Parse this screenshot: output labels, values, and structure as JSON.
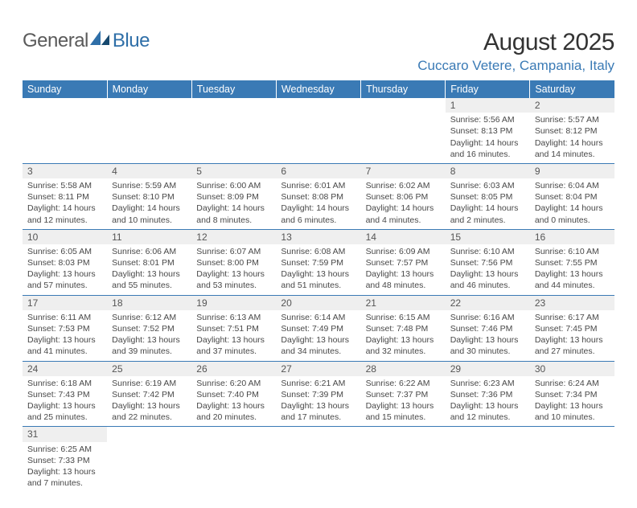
{
  "logo": {
    "text1": "General",
    "text2": "Blue"
  },
  "title": "August 2025",
  "location": "Cuccaro Vetere, Campania, Italy",
  "colors": {
    "header_bg": "#3a7ab5",
    "header_text": "#ffffff",
    "text": "#484848",
    "daynum_bg": "#efefef",
    "border": "#3a7ab5",
    "logo_gray": "#5a5a5a",
    "logo_blue": "#2f6fa8"
  },
  "days_of_week": [
    "Sunday",
    "Monday",
    "Tuesday",
    "Wednesday",
    "Thursday",
    "Friday",
    "Saturday"
  ],
  "weeks": [
    [
      {
        "n": "",
        "sr": "",
        "ss": "",
        "dl": ""
      },
      {
        "n": "",
        "sr": "",
        "ss": "",
        "dl": ""
      },
      {
        "n": "",
        "sr": "",
        "ss": "",
        "dl": ""
      },
      {
        "n": "",
        "sr": "",
        "ss": "",
        "dl": ""
      },
      {
        "n": "",
        "sr": "",
        "ss": "",
        "dl": ""
      },
      {
        "n": "1",
        "sr": "Sunrise: 5:56 AM",
        "ss": "Sunset: 8:13 PM",
        "dl": "Daylight: 14 hours and 16 minutes."
      },
      {
        "n": "2",
        "sr": "Sunrise: 5:57 AM",
        "ss": "Sunset: 8:12 PM",
        "dl": "Daylight: 14 hours and 14 minutes."
      }
    ],
    [
      {
        "n": "3",
        "sr": "Sunrise: 5:58 AM",
        "ss": "Sunset: 8:11 PM",
        "dl": "Daylight: 14 hours and 12 minutes."
      },
      {
        "n": "4",
        "sr": "Sunrise: 5:59 AM",
        "ss": "Sunset: 8:10 PM",
        "dl": "Daylight: 14 hours and 10 minutes."
      },
      {
        "n": "5",
        "sr": "Sunrise: 6:00 AM",
        "ss": "Sunset: 8:09 PM",
        "dl": "Daylight: 14 hours and 8 minutes."
      },
      {
        "n": "6",
        "sr": "Sunrise: 6:01 AM",
        "ss": "Sunset: 8:08 PM",
        "dl": "Daylight: 14 hours and 6 minutes."
      },
      {
        "n": "7",
        "sr": "Sunrise: 6:02 AM",
        "ss": "Sunset: 8:06 PM",
        "dl": "Daylight: 14 hours and 4 minutes."
      },
      {
        "n": "8",
        "sr": "Sunrise: 6:03 AM",
        "ss": "Sunset: 8:05 PM",
        "dl": "Daylight: 14 hours and 2 minutes."
      },
      {
        "n": "9",
        "sr": "Sunrise: 6:04 AM",
        "ss": "Sunset: 8:04 PM",
        "dl": "Daylight: 14 hours and 0 minutes."
      }
    ],
    [
      {
        "n": "10",
        "sr": "Sunrise: 6:05 AM",
        "ss": "Sunset: 8:03 PM",
        "dl": "Daylight: 13 hours and 57 minutes."
      },
      {
        "n": "11",
        "sr": "Sunrise: 6:06 AM",
        "ss": "Sunset: 8:01 PM",
        "dl": "Daylight: 13 hours and 55 minutes."
      },
      {
        "n": "12",
        "sr": "Sunrise: 6:07 AM",
        "ss": "Sunset: 8:00 PM",
        "dl": "Daylight: 13 hours and 53 minutes."
      },
      {
        "n": "13",
        "sr": "Sunrise: 6:08 AM",
        "ss": "Sunset: 7:59 PM",
        "dl": "Daylight: 13 hours and 51 minutes."
      },
      {
        "n": "14",
        "sr": "Sunrise: 6:09 AM",
        "ss": "Sunset: 7:57 PM",
        "dl": "Daylight: 13 hours and 48 minutes."
      },
      {
        "n": "15",
        "sr": "Sunrise: 6:10 AM",
        "ss": "Sunset: 7:56 PM",
        "dl": "Daylight: 13 hours and 46 minutes."
      },
      {
        "n": "16",
        "sr": "Sunrise: 6:10 AM",
        "ss": "Sunset: 7:55 PM",
        "dl": "Daylight: 13 hours and 44 minutes."
      }
    ],
    [
      {
        "n": "17",
        "sr": "Sunrise: 6:11 AM",
        "ss": "Sunset: 7:53 PM",
        "dl": "Daylight: 13 hours and 41 minutes."
      },
      {
        "n": "18",
        "sr": "Sunrise: 6:12 AM",
        "ss": "Sunset: 7:52 PM",
        "dl": "Daylight: 13 hours and 39 minutes."
      },
      {
        "n": "19",
        "sr": "Sunrise: 6:13 AM",
        "ss": "Sunset: 7:51 PM",
        "dl": "Daylight: 13 hours and 37 minutes."
      },
      {
        "n": "20",
        "sr": "Sunrise: 6:14 AM",
        "ss": "Sunset: 7:49 PM",
        "dl": "Daylight: 13 hours and 34 minutes."
      },
      {
        "n": "21",
        "sr": "Sunrise: 6:15 AM",
        "ss": "Sunset: 7:48 PM",
        "dl": "Daylight: 13 hours and 32 minutes."
      },
      {
        "n": "22",
        "sr": "Sunrise: 6:16 AM",
        "ss": "Sunset: 7:46 PM",
        "dl": "Daylight: 13 hours and 30 minutes."
      },
      {
        "n": "23",
        "sr": "Sunrise: 6:17 AM",
        "ss": "Sunset: 7:45 PM",
        "dl": "Daylight: 13 hours and 27 minutes."
      }
    ],
    [
      {
        "n": "24",
        "sr": "Sunrise: 6:18 AM",
        "ss": "Sunset: 7:43 PM",
        "dl": "Daylight: 13 hours and 25 minutes."
      },
      {
        "n": "25",
        "sr": "Sunrise: 6:19 AM",
        "ss": "Sunset: 7:42 PM",
        "dl": "Daylight: 13 hours and 22 minutes."
      },
      {
        "n": "26",
        "sr": "Sunrise: 6:20 AM",
        "ss": "Sunset: 7:40 PM",
        "dl": "Daylight: 13 hours and 20 minutes."
      },
      {
        "n": "27",
        "sr": "Sunrise: 6:21 AM",
        "ss": "Sunset: 7:39 PM",
        "dl": "Daylight: 13 hours and 17 minutes."
      },
      {
        "n": "28",
        "sr": "Sunrise: 6:22 AM",
        "ss": "Sunset: 7:37 PM",
        "dl": "Daylight: 13 hours and 15 minutes."
      },
      {
        "n": "29",
        "sr": "Sunrise: 6:23 AM",
        "ss": "Sunset: 7:36 PM",
        "dl": "Daylight: 13 hours and 12 minutes."
      },
      {
        "n": "30",
        "sr": "Sunrise: 6:24 AM",
        "ss": "Sunset: 7:34 PM",
        "dl": "Daylight: 13 hours and 10 minutes."
      }
    ],
    [
      {
        "n": "31",
        "sr": "Sunrise: 6:25 AM",
        "ss": "Sunset: 7:33 PM",
        "dl": "Daylight: 13 hours and 7 minutes."
      },
      {
        "n": "",
        "sr": "",
        "ss": "",
        "dl": ""
      },
      {
        "n": "",
        "sr": "",
        "ss": "",
        "dl": ""
      },
      {
        "n": "",
        "sr": "",
        "ss": "",
        "dl": ""
      },
      {
        "n": "",
        "sr": "",
        "ss": "",
        "dl": ""
      },
      {
        "n": "",
        "sr": "",
        "ss": "",
        "dl": ""
      },
      {
        "n": "",
        "sr": "",
        "ss": "",
        "dl": ""
      }
    ]
  ]
}
